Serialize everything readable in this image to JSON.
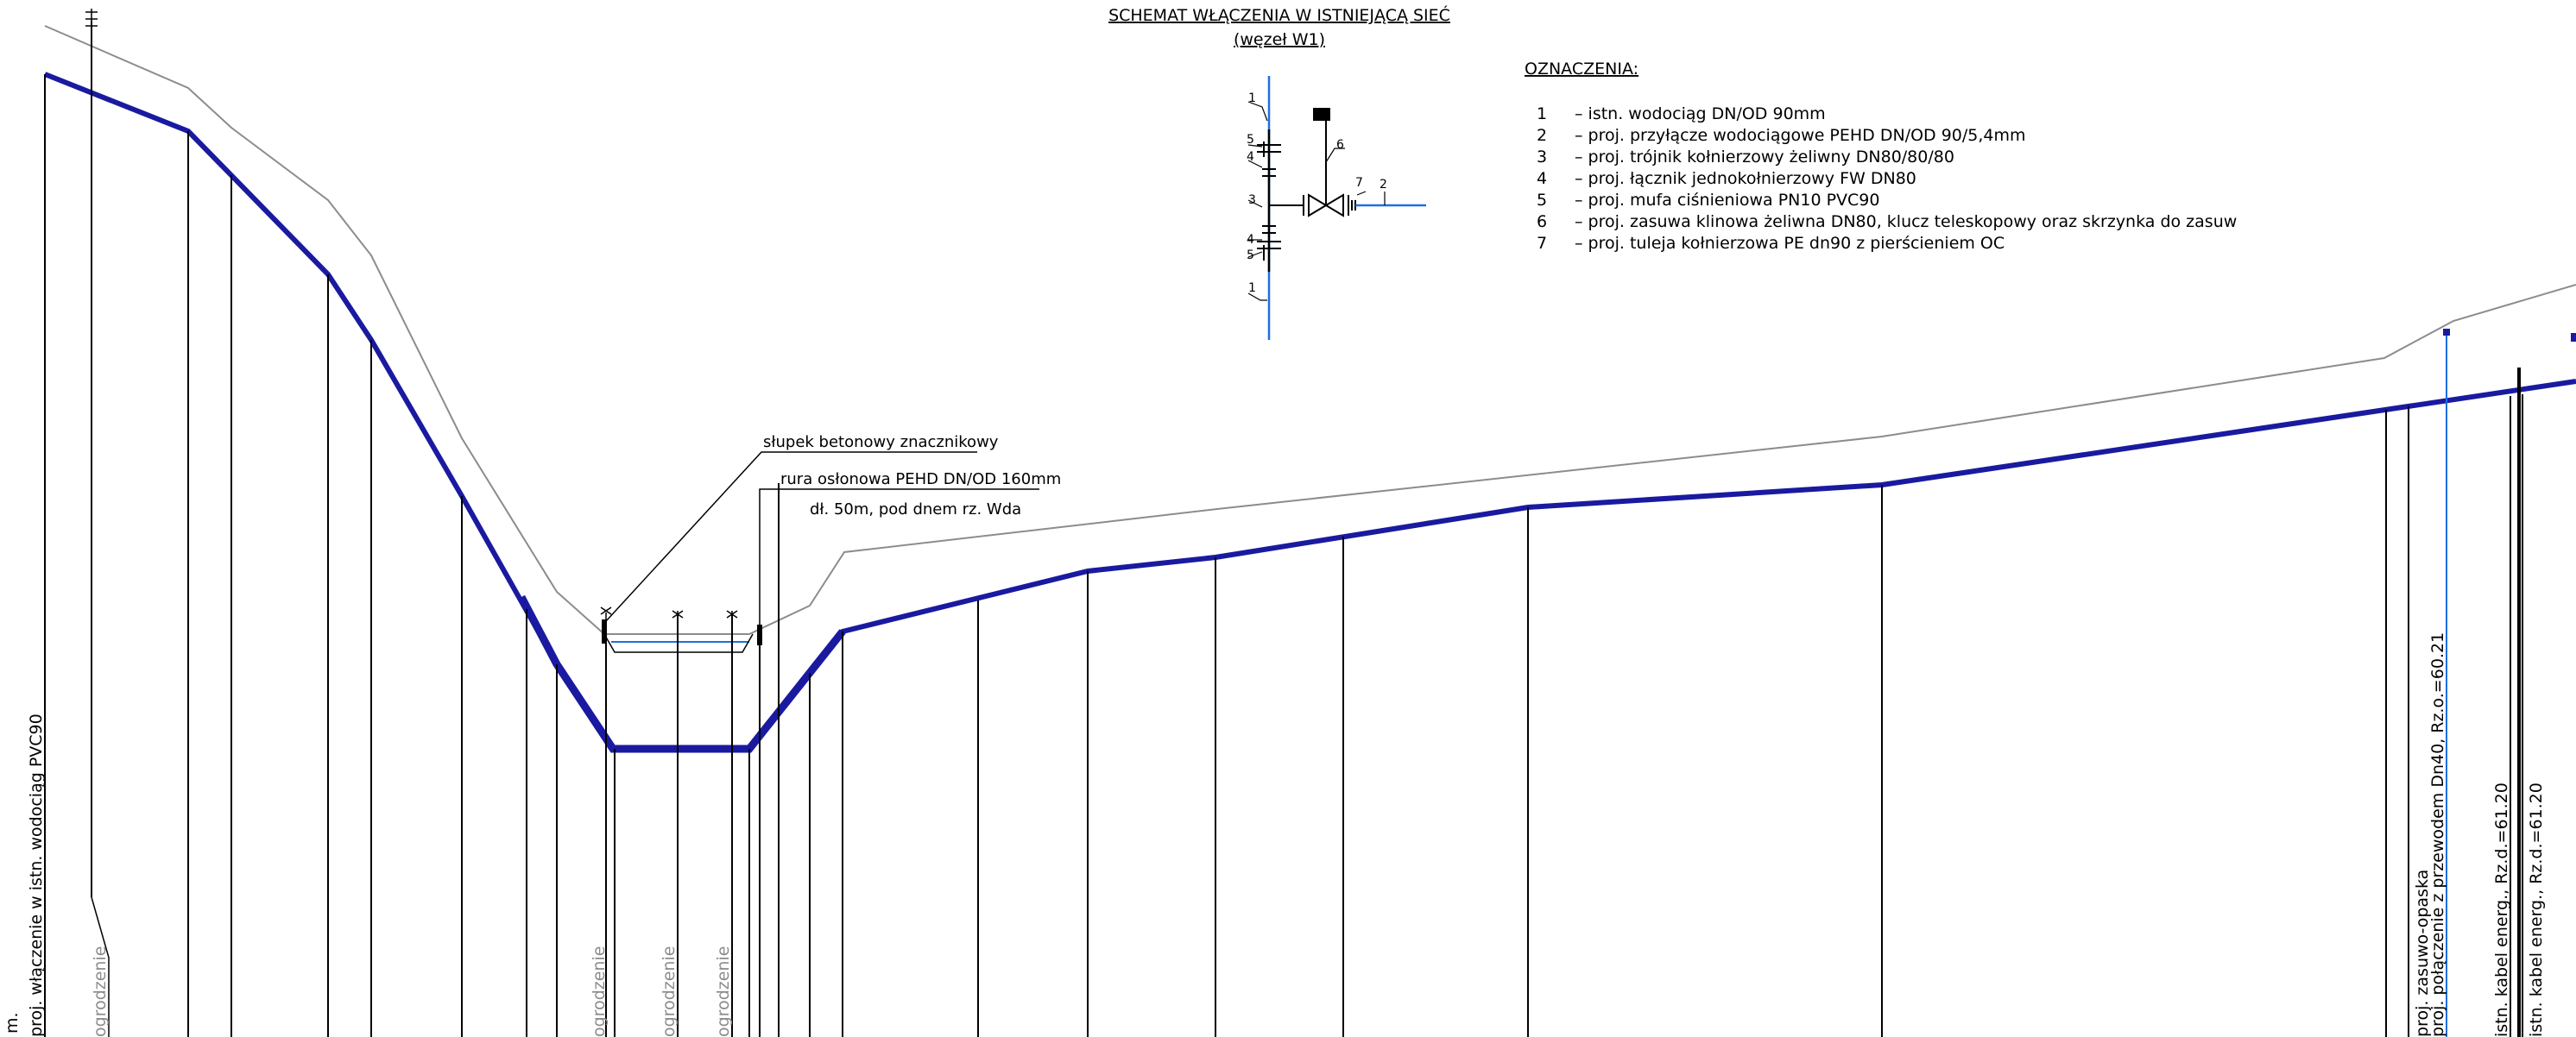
{
  "scheme": {
    "title": "SCHEMAT WŁĄCZENIA W ISTNIEJĄCĄ SIEĆ",
    "subtitle": "(węzeł W1)",
    "callouts": [
      "1",
      "5",
      "4",
      "3",
      "4",
      "5",
      "1",
      "6",
      "7",
      "2"
    ]
  },
  "legend": {
    "heading": "OZNACZENIA:",
    "items": [
      {
        "num": "1",
        "text": "– istn. wodociąg DN/OD 90mm"
      },
      {
        "num": "2",
        "text": "– proj. przyłącze wodociągowe PEHD DN/OD 90/5,4mm"
      },
      {
        "num": "3",
        "text": "– proj. trójnik kołnierzowy żeliwny DN80/80/80"
      },
      {
        "num": "4",
        "text": "– proj. łącznik jednokołnierzowy FW DN80"
      },
      {
        "num": "5",
        "text": "– proj. mufa ciśnieniowa PN10 PVC90"
      },
      {
        "num": "6",
        "text": "– proj. zasuwa klinowa żeliwna DN80, klucz teleskopowy oraz skrzynka do zasuw"
      },
      {
        "num": "7",
        "text": "– proj. tuleja kołnierzowa PE dn90 z pierścieniem OC"
      }
    ]
  },
  "profile_notes": {
    "marker_post": "słupek betonowy znacznikowy",
    "casing_pipe": "rura osłonowa PEHD DN/OD 160mm",
    "casing_detail": "dł. 50m, pod dnem rz. Wda"
  },
  "vertical_labels": {
    "connection": "proj. włączenie w istn. wodociąg PVC90",
    "edge_fragment": "m.",
    "fence_1": "ogrodzenie",
    "fence_2": "ogrodzenie",
    "fence_3": "ogrodzenie",
    "fence_4": "ogrodzenie",
    "valve_band": "proj. zasuwo-opaska",
    "connection_wire": "proj. połączenie z przewodem  Dn40, Rz.o.=60.21",
    "cable_1": "istn. kabel energ., Rz.d.=61.20",
    "cable_2": "istn. kabel energ., Rz.d.=61.20"
  },
  "colors": {
    "pipe": "#1a1aa0",
    "ground": "#8c8c8c",
    "water": "#1e6fe0",
    "ink": "#000000"
  }
}
